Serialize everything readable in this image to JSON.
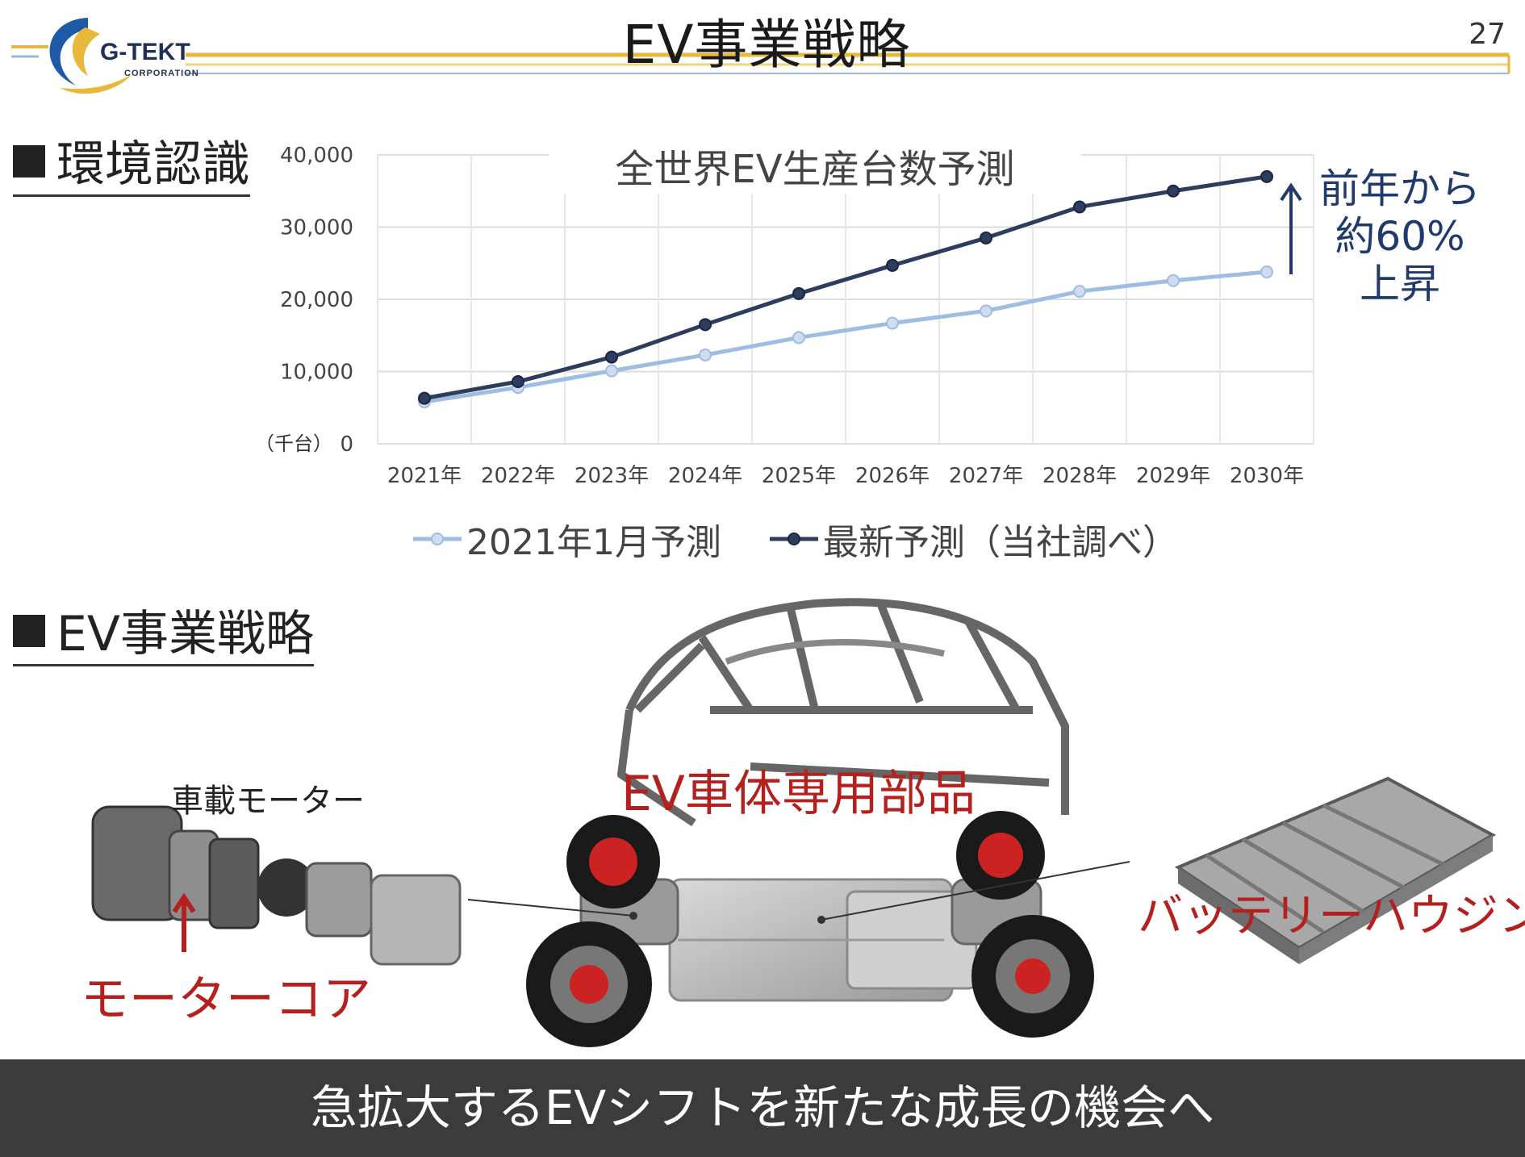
{
  "header": {
    "logo_text": "G-TEKT",
    "logo_sub": "CORPORATION",
    "title": "EV事業戦略",
    "page_number": "27",
    "colors": {
      "gold": "#e8b83a",
      "blue": "#1f5aa8"
    }
  },
  "section1": {
    "heading": "環境認識"
  },
  "chart_data": {
    "type": "line",
    "title": "全世界EV生産台数予測",
    "unit_label": "（千台）",
    "categories": [
      "2021年",
      "2022年",
      "2023年",
      "2024年",
      "2025年",
      "2026年",
      "2027年",
      "2028年",
      "2029年",
      "2030年"
    ],
    "ylim": [
      0,
      40000
    ],
    "yticks": [
      "0",
      "10,000",
      "20,000",
      "30,000",
      "40,000"
    ],
    "grid": true,
    "legend_position": "bottom",
    "series": [
      {
        "name": "2021年1月予測",
        "color": "#9dbde3",
        "values": [
          5800,
          7800,
          10100,
          12300,
          14700,
          16700,
          18400,
          21100,
          22600,
          23800
        ]
      },
      {
        "name": "最新予測（当社調べ）",
        "color": "#2e3d5e",
        "values": [
          6300,
          8600,
          12000,
          16500,
          20800,
          24700,
          28500,
          32800,
          35000,
          37000
        ]
      }
    ]
  },
  "annotation": {
    "line1": "前年から",
    "line2": "約60%",
    "line3": "上昇"
  },
  "section2": {
    "heading": "EV事業戦略"
  },
  "illustration": {
    "ev_body_label": "EV車体専用部品",
    "motor_label": "車載モーター",
    "core_label": "モーターコア",
    "battery_label": "バッテリーハウジング"
  },
  "banner": {
    "text": "急拡大するEVシフトを新たな成長の機会へ"
  }
}
